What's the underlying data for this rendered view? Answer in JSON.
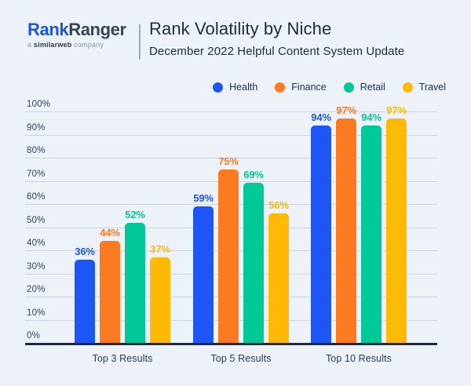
{
  "header": {
    "logo": {
      "name_part1": "Rank",
      "name_part2": "Ranger",
      "tagline_a": "a",
      "tagline_brand": "similarweb",
      "tagline_company": "company"
    },
    "title": "Rank Volatility by Niche",
    "subtitle": "December 2022 Helpful Content System Update"
  },
  "chart_data": {
    "type": "bar",
    "title": "Rank Volatility by Niche",
    "subtitle": "December 2022 Helpful Content System Update",
    "categories": [
      "Top 3 Results",
      "Top 5 Results",
      "Top 10 Results"
    ],
    "series": [
      {
        "name": "Health",
        "color": "#1E56F6",
        "values": [
          36,
          59,
          94
        ]
      },
      {
        "name": "Finance",
        "color": "#FB7A22",
        "values": [
          44,
          75,
          97
        ]
      },
      {
        "name": "Retail",
        "color": "#00C897",
        "values": [
          52,
          69,
          94
        ]
      },
      {
        "name": "Travel",
        "color": "#FFBA07",
        "values": [
          37,
          56,
          97
        ]
      }
    ],
    "ylim": [
      0,
      100
    ],
    "ytick_step": 10,
    "ytick_suffix": "%",
    "value_suffix": "%",
    "grid": true,
    "legend_position": "top-right",
    "xlabel": "",
    "ylabel": ""
  },
  "colors": {
    "background": "#EDF2F9",
    "axis_line": "#1C2B45",
    "gridline": "#C9D3E1",
    "tick_text": "#33415C",
    "title_text": "#1D2B3E",
    "logo_blue": "#1E56D9",
    "logo_dark": "#3A4455",
    "tagline_gray": "#8A94A6"
  }
}
